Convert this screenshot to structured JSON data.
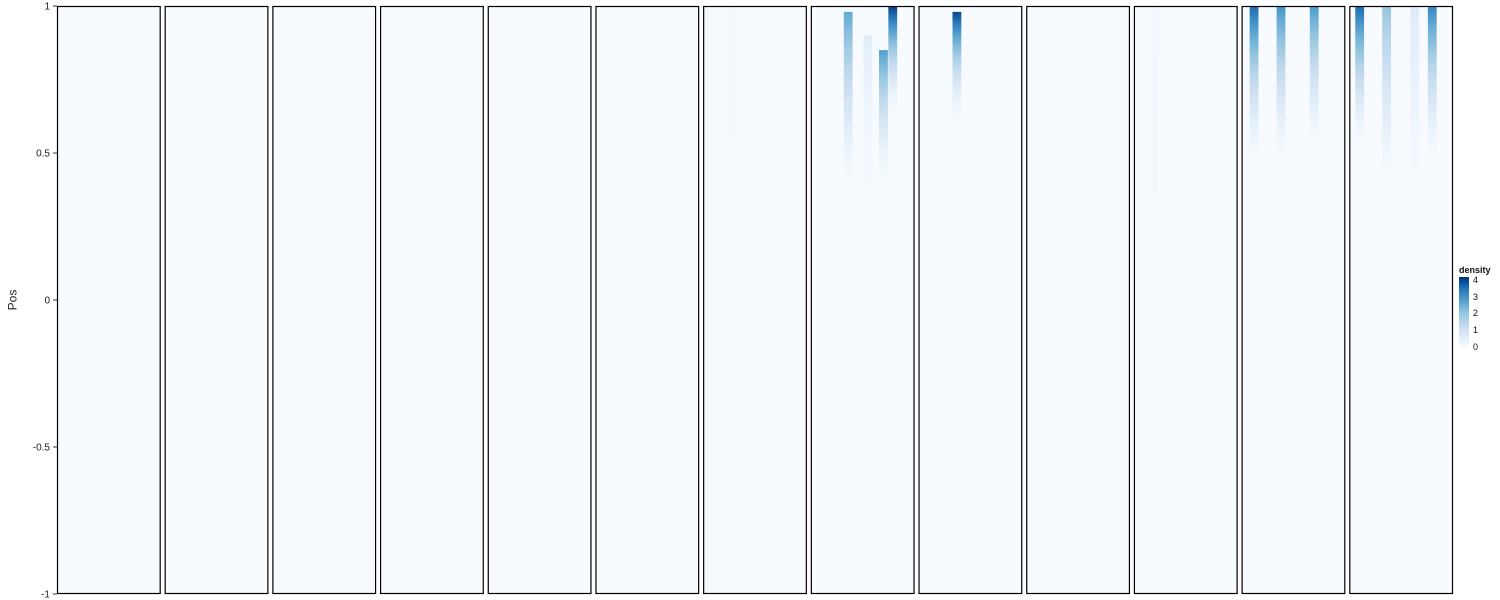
{
  "chart_data": {
    "type": "heatmap",
    "ylabel": "Pos",
    "xlabel": "",
    "y_ticks": [
      "1",
      "0.5",
      "0",
      "-0.5",
      "-1"
    ],
    "ylim": [
      -1,
      1
    ],
    "legend": {
      "title": "density",
      "ticks": [
        "4",
        "3",
        "2",
        "1",
        "0"
      ],
      "range": [
        0,
        4.2
      ],
      "placement": "right",
      "color_low": "#f7fbff",
      "color_high": "#08306b"
    },
    "panel_count": 13,
    "panels": [
      {
        "streaks": []
      },
      {
        "streaks": []
      },
      {
        "streaks": []
      },
      {
        "streaks": []
      },
      {
        "streaks": []
      },
      {
        "streaks": []
      },
      {
        "streaks": [
          {
            "x": 0.28,
            "peak": 0.15,
            "top": 1.0,
            "bottom": -1.0
          }
        ]
      },
      {
        "streaks": [
          {
            "x": 0.36,
            "peak": 2.6,
            "top": 0.98,
            "bottom": 0.35
          },
          {
            "x": 0.55,
            "peak": 0.5,
            "top": 0.9,
            "bottom": 0.2
          },
          {
            "x": 0.7,
            "peak": 2.8,
            "top": 0.85,
            "bottom": 0.38
          },
          {
            "x": 0.79,
            "peak": 4.1,
            "top": 1.0,
            "bottom": 0.62
          }
        ]
      },
      {
        "streaks": [
          {
            "x": 0.37,
            "peak": 4.0,
            "top": 0.98,
            "bottom": 0.6
          }
        ]
      },
      {
        "streaks": []
      },
      {
        "streaks": [
          {
            "x": 0.2,
            "peak": 0.2,
            "top": 1.0,
            "bottom": -1.0
          }
        ]
      },
      {
        "streaks": [
          {
            "x": 0.12,
            "peak": 3.6,
            "top": 1.0,
            "bottom": 0.45
          },
          {
            "x": 0.38,
            "peak": 3.0,
            "top": 1.0,
            "bottom": 0.45
          },
          {
            "x": 0.7,
            "peak": 2.9,
            "top": 1.0,
            "bottom": 0.5
          }
        ]
      },
      {
        "streaks": [
          {
            "x": 0.1,
            "peak": 3.6,
            "top": 1.0,
            "bottom": 0.5
          },
          {
            "x": 0.36,
            "peak": 2.0,
            "top": 1.0,
            "bottom": 0.35
          },
          {
            "x": 0.63,
            "peak": 0.6,
            "top": 1.0,
            "bottom": 0.2
          },
          {
            "x": 0.8,
            "peak": 3.2,
            "top": 1.0,
            "bottom": 0.45
          }
        ]
      }
    ]
  }
}
